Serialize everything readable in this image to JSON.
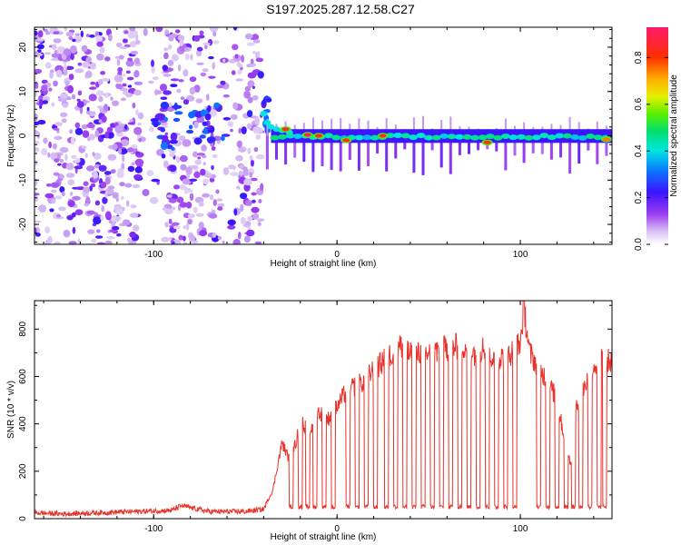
{
  "title": "S197.2025.287.12.58.C27",
  "chart_data": [
    {
      "type": "heatmap",
      "xlabel": "Height of straight line (km)",
      "ylabel": "Frequency (Hz)",
      "xlim": [
        -165,
        150
      ],
      "ylim": [
        -24.5,
        24.5
      ],
      "xticks": [
        -100,
        0,
        100
      ],
      "yticks": [
        -20,
        -10,
        0,
        10,
        20
      ],
      "colorbar": {
        "label": "Normalized spectral amplitude",
        "range": [
          0,
          0.93
        ],
        "ticks": [
          0.0,
          0.2,
          0.4,
          0.6,
          0.8
        ],
        "tick_labels": [
          "0.0",
          "0.2",
          "0.4",
          "0.6",
          "0.8"
        ]
      },
      "features": {
        "noise_region_x": [
          -165,
          -45
        ],
        "onset_x": -40,
        "line_frequency_hz": 0,
        "peak_points": [
          {
            "x": -28,
            "y": 1.5,
            "v": 0.85
          },
          {
            "x": -16,
            "y": 0.2,
            "v": 0.9
          },
          {
            "x": -10,
            "y": 0.0,
            "v": 0.85
          },
          {
            "x": 5,
            "y": -1.0,
            "v": 0.8
          },
          {
            "x": 25,
            "y": 0.0,
            "v": 0.85
          },
          {
            "x": 82,
            "y": -1.5,
            "v": 0.8
          },
          {
            "x": 147,
            "y": -0.8,
            "v": 0.75
          }
        ]
      }
    },
    {
      "type": "line",
      "xlabel": "Height of straight line (km)",
      "ylabel": "SNR (10 * v/v)",
      "xlim": [
        -165,
        150
      ],
      "ylim": [
        0,
        920
      ],
      "xticks": [
        -100,
        0,
        100
      ],
      "yticks": [
        0,
        200,
        400,
        600,
        800
      ],
      "series": [
        {
          "name": "SNR",
          "color": "#e8322a",
          "x": [
            -165,
            -150,
            -130,
            -110,
            -90,
            -85,
            -70,
            -50,
            -40,
            -35,
            -30,
            -26,
            -22,
            -20,
            -15,
            -10,
            -5,
            0,
            5,
            10,
            15,
            20,
            25,
            30,
            35,
            40,
            50,
            60,
            70,
            75,
            80,
            85,
            90,
            95,
            100,
            102,
            105,
            110,
            115,
            120,
            125,
            128,
            130,
            135,
            140,
            145,
            150
          ],
          "values": [
            25,
            20,
            25,
            30,
            35,
            55,
            30,
            30,
            40,
            120,
            320,
            250,
            330,
            420,
            360,
            450,
            420,
            470,
            540,
            560,
            580,
            630,
            660,
            700,
            730,
            690,
            700,
            720,
            730,
            700,
            720,
            680,
            680,
            700,
            740,
            900,
            700,
            640,
            580,
            500,
            300,
            220,
            450,
            560,
            640,
            680,
            660
          ]
        }
      ],
      "dropouts_x": [
        -26,
        -21,
        -17,
        -13,
        -8,
        -3,
        5,
        10,
        15,
        20,
        26,
        31,
        36,
        41,
        46,
        51,
        56,
        61,
        66,
        71,
        76,
        81,
        86,
        91,
        96,
        109,
        114,
        119,
        124,
        128,
        132,
        137,
        142,
        145
      ],
      "dropout_level": 50
    }
  ]
}
